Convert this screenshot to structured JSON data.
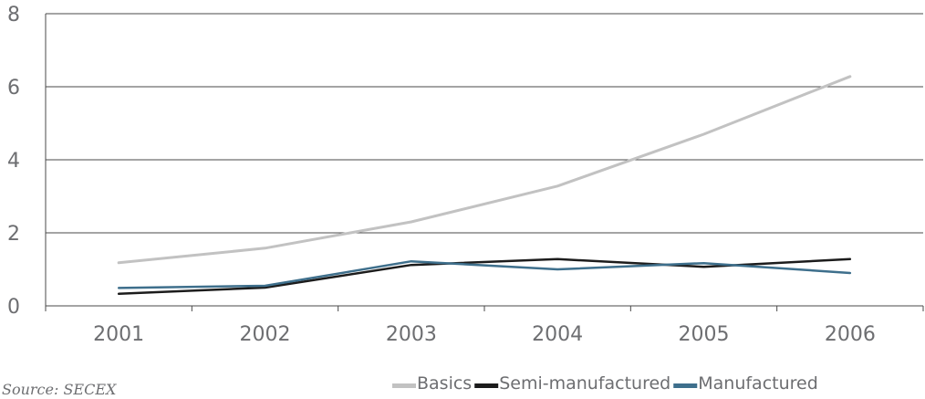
{
  "chart_data": {
    "type": "line",
    "title": "",
    "xlabel": "",
    "ylabel": "",
    "categories": [
      "2001",
      "2002",
      "2003",
      "2004",
      "2005",
      "2006"
    ],
    "ylim": [
      0,
      8
    ],
    "yticks": [
      "0",
      "2",
      "4",
      "6",
      "8"
    ],
    "grid": true,
    "legend_position": "bottom-right",
    "series": [
      {
        "name": "Basics",
        "color": "#c2c2c2",
        "values": [
          1.18,
          1.58,
          2.3,
          3.28,
          4.7,
          6.28
        ]
      },
      {
        "name": "Semi-manufactured",
        "color": "#1c1c1c",
        "values": [
          0.33,
          0.5,
          1.12,
          1.28,
          1.07,
          1.28
        ]
      },
      {
        "name": "Manufactured",
        "color": "#3e6f8c",
        "values": [
          0.49,
          0.55,
          1.22,
          1.0,
          1.17,
          0.9
        ]
      }
    ]
  },
  "source": "Source: SECEX"
}
